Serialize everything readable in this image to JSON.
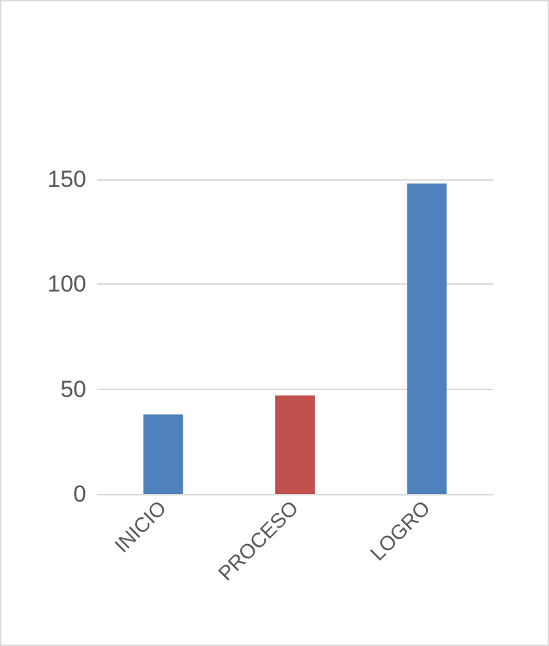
{
  "chart_data": {
    "type": "bar",
    "categories": [
      "INICIO",
      "PROCESO",
      "LOGRO"
    ],
    "values": [
      38,
      47,
      148
    ],
    "colors": [
      "#4f81bd",
      "#c0504d",
      "#4f81bd"
    ],
    "ylim": [
      0,
      150
    ],
    "yticks": [
      0,
      50,
      100,
      150
    ],
    "grid": "y"
  }
}
